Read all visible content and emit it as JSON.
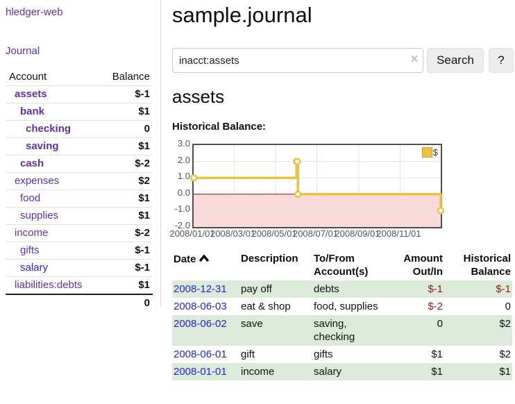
{
  "app": {
    "title": "hledger-web"
  },
  "sidebar": {
    "journal_link": "Journal",
    "headers": {
      "account": "Account",
      "balance": "Balance"
    },
    "accounts": [
      {
        "name": "assets",
        "indent": 1,
        "bold": true,
        "blue": false,
        "balance": "$-1",
        "balance_style": "neg-strong"
      },
      {
        "name": "bank",
        "indent": 2,
        "bold": true,
        "blue": false,
        "balance": "$1",
        "balance_style": "pos"
      },
      {
        "name": "checking",
        "indent": 3,
        "bold": true,
        "blue": false,
        "balance": "0",
        "balance_style": "pos"
      },
      {
        "name": "saving",
        "indent": 3,
        "bold": true,
        "blue": false,
        "balance": "$1",
        "balance_style": "pos"
      },
      {
        "name": "cash",
        "indent": 2,
        "bold": true,
        "blue": false,
        "balance": "$-2",
        "balance_style": "neg-strong"
      },
      {
        "name": "expenses",
        "indent": 1,
        "bold": false,
        "blue": false,
        "balance": "$2",
        "balance_style": "plain"
      },
      {
        "name": "food",
        "indent": 2,
        "bold": false,
        "blue": false,
        "balance": "$1",
        "balance_style": "plain"
      },
      {
        "name": "supplies",
        "indent": 2,
        "bold": false,
        "blue": false,
        "balance": "$1",
        "balance_style": "plain"
      },
      {
        "name": "income",
        "indent": 1,
        "bold": false,
        "blue": false,
        "balance": "$-2",
        "balance_style": "neg-soft"
      },
      {
        "name": "gifts",
        "indent": 2,
        "bold": false,
        "blue": false,
        "balance": "$-1",
        "balance_style": "neg-soft"
      },
      {
        "name": "salary",
        "indent": 2,
        "bold": false,
        "blue": true,
        "balance": "$-1",
        "balance_style": "neg-soft"
      },
      {
        "name": "liabilities:debts",
        "indent": 1,
        "bold": false,
        "blue": false,
        "balance": "$1",
        "balance_style": "plain"
      }
    ],
    "total": "0"
  },
  "main": {
    "title": "sample.journal",
    "search": {
      "value": "inacct:assets",
      "clear_icon": "×",
      "button_label": "Search",
      "help_label": "?"
    },
    "account_heading": "assets",
    "chart_label": "Historical Balance:"
  },
  "chart_data": {
    "type": "line",
    "title": "Historical Balance:",
    "step": true,
    "xlim": [
      "2008-01-01",
      "2008-12-31"
    ],
    "ylim": [
      -2,
      3
    ],
    "yticks": [
      3.0,
      2.0,
      1.0,
      0.0,
      -1.0,
      -2.0
    ],
    "ytick_labels": [
      "3.0",
      "2.0",
      "1.0",
      "0.0",
      "-1.0",
      "-2.0"
    ],
    "xticks": [
      "2008-01-01",
      "2008-03-01",
      "2008-05-01",
      "2008-07-01",
      "2008-09-01",
      "2008-11-01"
    ],
    "xtick_labels": [
      "2008/01/01",
      "2008/03/01",
      "2008/05/01",
      "2008/07/01",
      "2008/09/01",
      "2008/11/01"
    ],
    "legend": {
      "label": "$",
      "position": "top-right"
    },
    "series": [
      {
        "name": "$",
        "color": "#edc240",
        "points": [
          {
            "date": "2008-01-01",
            "value": 1
          },
          {
            "date": "2008-06-01",
            "value": 2
          },
          {
            "date": "2008-06-02",
            "value": 2
          },
          {
            "date": "2008-06-03",
            "value": 0
          },
          {
            "date": "2008-12-31",
            "value": -1
          }
        ]
      }
    ],
    "grid": true,
    "grid_color": "#e3e3e3",
    "border_color": "#4f4f4f",
    "zero_line_color": "#9c0a0a",
    "negative_region_fill": "#f9dada"
  },
  "register": {
    "headers": {
      "date": "Date",
      "description": "Description",
      "account": "To/From Account(s)",
      "amount": "Amount Out/In",
      "balance": "Historical Balance"
    },
    "rows": [
      {
        "date": "2008-12-31",
        "description": "pay off",
        "accounts": "debts",
        "amount": "$-1",
        "amount_neg": true,
        "balance": "$-1",
        "balance_neg": true,
        "green": true
      },
      {
        "date": "2008-06-03",
        "description": "eat & shop",
        "accounts": "food, supplies",
        "amount": "$-2",
        "amount_neg": true,
        "balance": "0",
        "balance_neg": false,
        "green": false
      },
      {
        "date": "2008-06-02",
        "description": "save",
        "accounts": "saving, checking",
        "amount": "0",
        "amount_neg": false,
        "balance": "$2",
        "balance_neg": false,
        "green": true
      },
      {
        "date": "2008-06-01",
        "description": "gift",
        "accounts": "gifts",
        "amount": "$1",
        "amount_neg": false,
        "balance": "$2",
        "balance_neg": false,
        "green": false
      },
      {
        "date": "2008-01-01",
        "description": "income",
        "accounts": "salary",
        "amount": "$1",
        "amount_neg": false,
        "balance": "$1",
        "balance_neg": false,
        "green": true
      }
    ]
  }
}
